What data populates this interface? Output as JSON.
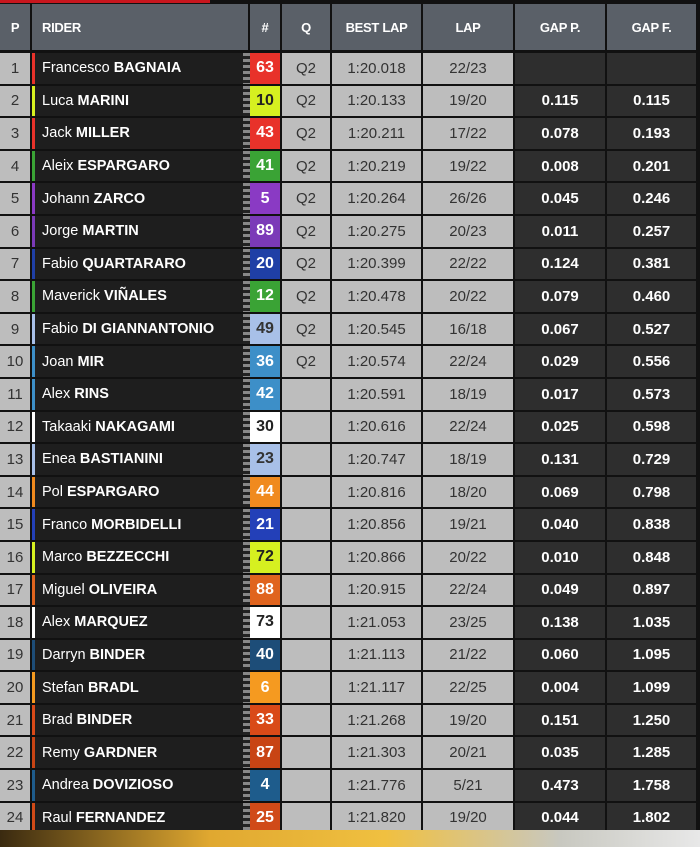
{
  "headers": {
    "p": "P",
    "rider": "RIDER",
    "num": "#",
    "q": "Q",
    "best": "BEST LAP",
    "lap": "LAP",
    "gap_p": "GAP P.",
    "gap_f": "GAP F."
  },
  "rows": [
    {
      "p": "1",
      "first": "Francesco",
      "last": "BAGNAIA",
      "num": "63",
      "color": "#e8322a",
      "text": "#fff",
      "q": "Q2",
      "best": "1:20.018",
      "lap": "22/23",
      "gap_p": "",
      "gap_f": ""
    },
    {
      "p": "2",
      "first": "Luca",
      "last": "MARINI",
      "num": "10",
      "color": "#d6f020",
      "text": "#222",
      "q": "Q2",
      "best": "1:20.133",
      "lap": "19/20",
      "gap_p": "0.115",
      "gap_f": "0.115"
    },
    {
      "p": "3",
      "first": "Jack",
      "last": "MILLER",
      "num": "43",
      "color": "#e8322a",
      "text": "#fff",
      "q": "Q2",
      "best": "1:20.211",
      "lap": "17/22",
      "gap_p": "0.078",
      "gap_f": "0.193"
    },
    {
      "p": "4",
      "first": "Aleix",
      "last": "ESPARGARO",
      "num": "41",
      "color": "#3aa335",
      "text": "#fff",
      "q": "Q2",
      "best": "1:20.219",
      "lap": "19/22",
      "gap_p": "0.008",
      "gap_f": "0.201"
    },
    {
      "p": "5",
      "first": "Johann",
      "last": "ZARCO",
      "num": "5",
      "color": "#8a3ac4",
      "text": "#fff",
      "q": "Q2",
      "best": "1:20.264",
      "lap": "26/26",
      "gap_p": "0.045",
      "gap_f": "0.246"
    },
    {
      "p": "6",
      "first": "Jorge",
      "last": "MARTIN",
      "num": "89",
      "color": "#7b3ab8",
      "text": "#fff",
      "q": "Q2",
      "best": "1:20.275",
      "lap": "20/23",
      "gap_p": "0.011",
      "gap_f": "0.257"
    },
    {
      "p": "7",
      "first": "Fabio",
      "last": "QUARTARARO",
      "num": "20",
      "color": "#1f3fa6",
      "text": "#fff",
      "q": "Q2",
      "best": "1:20.399",
      "lap": "22/22",
      "gap_p": "0.124",
      "gap_f": "0.381"
    },
    {
      "p": "8",
      "first": "Maverick",
      "last": "VIÑALES",
      "num": "12",
      "color": "#3aa335",
      "text": "#fff",
      "q": "Q2",
      "best": "1:20.478",
      "lap": "20/22",
      "gap_p": "0.079",
      "gap_f": "0.460"
    },
    {
      "p": "9",
      "first": "Fabio",
      "last": "DI GIANNANTONIO",
      "num": "49",
      "color": "#a8c0e8",
      "text": "#333",
      "q": "Q2",
      "best": "1:20.545",
      "lap": "16/18",
      "gap_p": "0.067",
      "gap_f": "0.527"
    },
    {
      "p": "10",
      "first": "Joan",
      "last": "MIR",
      "num": "36",
      "color": "#3d8fc8",
      "text": "#fff",
      "q": "Q2",
      "best": "1:20.574",
      "lap": "22/24",
      "gap_p": "0.029",
      "gap_f": "0.556"
    },
    {
      "p": "11",
      "first": "Alex",
      "last": "RINS",
      "num": "42",
      "color": "#3d8fc8",
      "text": "#fff",
      "q": "",
      "best": "1:20.591",
      "lap": "18/19",
      "gap_p": "0.017",
      "gap_f": "0.573"
    },
    {
      "p": "12",
      "first": "Takaaki",
      "last": "NAKAGAMI",
      "num": "30",
      "color": "#ffffff",
      "text": "#222",
      "q": "",
      "best": "1:20.616",
      "lap": "22/24",
      "gap_p": "0.025",
      "gap_f": "0.598"
    },
    {
      "p": "13",
      "first": "Enea",
      "last": "BASTIANINI",
      "num": "23",
      "color": "#a8c0e8",
      "text": "#333",
      "q": "",
      "best": "1:20.747",
      "lap": "18/19",
      "gap_p": "0.131",
      "gap_f": "0.729"
    },
    {
      "p": "14",
      "first": "Pol",
      "last": "ESPARGARO",
      "num": "44",
      "color": "#f08a1e",
      "text": "#fff",
      "q": "",
      "best": "1:20.816",
      "lap": "18/20",
      "gap_p": "0.069",
      "gap_f": "0.798"
    },
    {
      "p": "15",
      "first": "Franco",
      "last": "MORBIDELLI",
      "num": "21",
      "color": "#2340b8",
      "text": "#fff",
      "q": "",
      "best": "1:20.856",
      "lap": "19/21",
      "gap_p": "0.040",
      "gap_f": "0.838"
    },
    {
      "p": "16",
      "first": "Marco",
      "last": "BEZZECCHI",
      "num": "72",
      "color": "#d6f020",
      "text": "#222",
      "q": "",
      "best": "1:20.866",
      "lap": "20/22",
      "gap_p": "0.010",
      "gap_f": "0.848"
    },
    {
      "p": "17",
      "first": "Miguel",
      "last": "OLIVEIRA",
      "num": "88",
      "color": "#e0641e",
      "text": "#fff",
      "q": "",
      "best": "1:20.915",
      "lap": "22/24",
      "gap_p": "0.049",
      "gap_f": "0.897"
    },
    {
      "p": "18",
      "first": "Alex",
      "last": "MARQUEZ",
      "num": "73",
      "color": "#ffffff",
      "text": "#222",
      "q": "",
      "best": "1:21.053",
      "lap": "23/25",
      "gap_p": "0.138",
      "gap_f": "1.035"
    },
    {
      "p": "19",
      "first": "Darryn",
      "last": "BINDER",
      "num": "40",
      "color": "#1d4d78",
      "text": "#fff",
      "q": "",
      "best": "1:21.113",
      "lap": "21/22",
      "gap_p": "0.060",
      "gap_f": "1.095"
    },
    {
      "p": "20",
      "first": "Stefan",
      "last": "BRADL",
      "num": "6",
      "color": "#f59a20",
      "text": "#fff",
      "q": "",
      "best": "1:21.117",
      "lap": "22/25",
      "gap_p": "0.004",
      "gap_f": "1.099"
    },
    {
      "p": "21",
      "first": "Brad",
      "last": "BINDER",
      "num": "33",
      "color": "#d94a18",
      "text": "#fff",
      "q": "",
      "best": "1:21.268",
      "lap": "19/20",
      "gap_p": "0.151",
      "gap_f": "1.250"
    },
    {
      "p": "22",
      "first": "Remy",
      "last": "GARDNER",
      "num": "87",
      "color": "#c84414",
      "text": "#fff",
      "q": "",
      "best": "1:21.303",
      "lap": "20/21",
      "gap_p": "0.035",
      "gap_f": "1.285"
    },
    {
      "p": "23",
      "first": "Andrea",
      "last": "DOVIZIOSO",
      "num": "4",
      "color": "#1e5c8c",
      "text": "#fff",
      "q": "",
      "best": "1:21.776",
      "lap": "5/21",
      "gap_p": "0.473",
      "gap_f": "1.758"
    },
    {
      "p": "24",
      "first": "Raul",
      "last": "FERNANDEZ",
      "num": "25",
      "color": "#d04a18",
      "text": "#fff",
      "q": "",
      "best": "1:21.820",
      "lap": "19/20",
      "gap_p": "0.044",
      "gap_f": "1.802"
    }
  ]
}
